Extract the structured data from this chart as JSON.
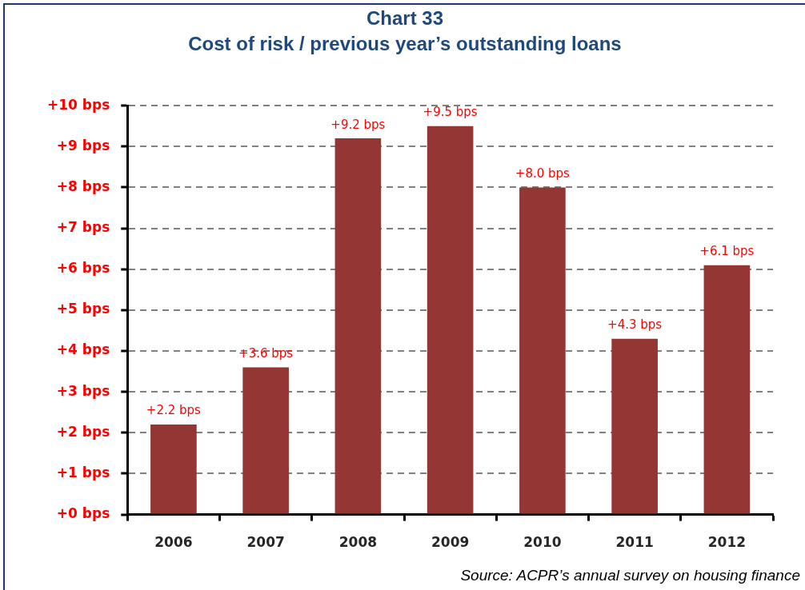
{
  "chart_data": {
    "type": "bar",
    "title": "Chart 33",
    "subtitle": "Cost of risk / previous year’s outstanding loans",
    "categories": [
      "2006",
      "2007",
      "2008",
      "2009",
      "2010",
      "2011",
      "2012"
    ],
    "values": [
      2.2,
      3.6,
      9.2,
      9.5,
      8.0,
      4.3,
      6.1
    ],
    "color": "#943634",
    "value_labels": [
      "+2.2 bps",
      "+3.6 bps",
      "+9.2 bps",
      "+9.5 bps",
      "+8.0 bps",
      "+4.3 bps",
      "+6.1 bps"
    ],
    "ylim": [
      0,
      10
    ],
    "yticks": [
      {
        "value": 0,
        "label": "+0 bps"
      },
      {
        "value": 1,
        "label": "+1 bps"
      },
      {
        "value": 2,
        "label": "+2 bps"
      },
      {
        "value": 3,
        "label": "+3 bps"
      },
      {
        "value": 4,
        "label": "+4 bps"
      },
      {
        "value": 5,
        "label": "+5 bps"
      },
      {
        "value": 6,
        "label": "+6 bps"
      },
      {
        "value": 7,
        "label": "+7 bps"
      },
      {
        "value": 8,
        "label": "+8 bps"
      },
      {
        "value": 9,
        "label": "+9 bps"
      },
      {
        "value": 10,
        "label": "+10 bps"
      }
    ],
    "grid": "y",
    "annotations": [
      "Source: ACPR’s annual survey on housing finance"
    ]
  }
}
